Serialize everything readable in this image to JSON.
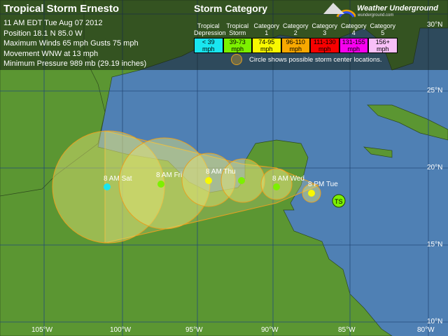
{
  "storm": {
    "title": "Tropical Storm Ernesto",
    "lines": [
      "11 AM EDT Tue Aug 07 2012",
      "Position 18.1 N 85.0 W",
      "Maximum Winds 65 mph  Gusts 75 mph",
      "Movement WNW at 13 mph",
      "Minimum Pressure 989 mb (29.19 inches)"
    ]
  },
  "legend": {
    "title": "Storm Category",
    "categories": [
      {
        "name": "Tropical Depression",
        "l1": "Tropical",
        "l2": "Depression",
        "range1": "< 39",
        "range2": "mph",
        "color": "#19e6f0"
      },
      {
        "name": "Tropical Storm",
        "l1": "Tropical",
        "l2": "Storm",
        "range1": "39-73",
        "range2": "mph",
        "color": "#7cf000"
      },
      {
        "name": "Category 1",
        "l1": "Category",
        "l2": "1",
        "range1": "74-95",
        "range2": "mph",
        "color": "#f8f800"
      },
      {
        "name": "Category 2",
        "l1": "Category",
        "l2": "2",
        "range1": "96-110",
        "range2": "mph",
        "color": "#f8a800"
      },
      {
        "name": "Category 3",
        "l1": "Category",
        "l2": "3",
        "range1": "111-130",
        "range2": "mph",
        "color": "#f80000"
      },
      {
        "name": "Category 4",
        "l1": "Category",
        "l2": "4",
        "range1": "131-155",
        "range2": "mph",
        "color": "#f800f0"
      },
      {
        "name": "Category 5",
        "l1": "Category",
        "l2": "5",
        "range1": "156+",
        "range2": "mph",
        "color": "#f8c0f8"
      }
    ],
    "circle_note": "Circle shows possible storm center locations."
  },
  "brand": {
    "name": "Weather Underground",
    "url": "wunderground.com"
  },
  "current": {
    "badge": "TS",
    "color": "#7cf000"
  },
  "forecast": [
    {
      "label": "8 PM Tue",
      "color": "#f8f800"
    },
    {
      "label": "8 AM Wed",
      "color": "#7cf000"
    },
    {
      "label": "8 AM Thu",
      "color": "#f8f800"
    },
    {
      "label": "",
      "color": "#7cf000"
    },
    {
      "label": "8 AM Fri",
      "color": "#7cf000"
    },
    {
      "label": "8 AM Sat",
      "color": "#19e6f0"
    }
  ],
  "axes": {
    "lon": [
      "105°W",
      "100°W",
      "95°W",
      "90°W",
      "85°W",
      "80°W"
    ],
    "lat": [
      "30°N",
      "25°N",
      "20°N",
      "15°N",
      "10°N"
    ]
  }
}
